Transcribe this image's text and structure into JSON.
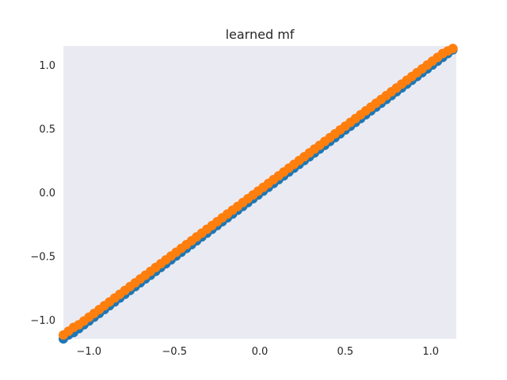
{
  "chart_data": {
    "type": "scatter",
    "title": "learned mf",
    "xlabel": "",
    "ylabel": "",
    "xlim": [
      -1.15,
      1.15
    ],
    "ylim": [
      -1.15,
      1.15
    ],
    "grid": false,
    "background": "#eaeaf2",
    "x_ticks": [
      -1.0,
      -0.5,
      0.0,
      0.5,
      1.0
    ],
    "y_ticks": [
      -1.0,
      -0.5,
      0.0,
      0.5,
      1.0
    ],
    "x_tick_labels": [
      "−1.0",
      "−0.5",
      "0.0",
      "0.5",
      "1.0"
    ],
    "y_tick_labels": [
      "−1.0",
      "−0.5",
      "0.0",
      "0.5",
      "1.0"
    ],
    "series": [
      {
        "color": "#1f77b4",
        "points": [
          [
            -1.15,
            -1.15
          ],
          [
            -1.12,
            -1.12
          ],
          [
            -1.09,
            -1.1
          ],
          [
            -1.06,
            -1.07
          ],
          [
            -1.03,
            -1.04
          ],
          [
            -1.0,
            -1.01
          ],
          [
            -0.97,
            -0.98
          ],
          [
            -0.94,
            -0.95
          ],
          [
            -0.91,
            -0.92
          ],
          [
            -0.88,
            -0.89
          ],
          [
            -0.85,
            -0.86
          ],
          [
            -0.82,
            -0.83
          ],
          [
            -0.79,
            -0.8
          ],
          [
            -0.76,
            -0.77
          ],
          [
            -0.73,
            -0.74
          ],
          [
            -0.7,
            -0.71
          ],
          [
            -0.67,
            -0.68
          ],
          [
            -0.64,
            -0.65
          ],
          [
            -0.61,
            -0.62
          ],
          [
            -0.58,
            -0.59
          ],
          [
            -0.55,
            -0.56
          ],
          [
            -0.52,
            -0.53
          ],
          [
            -0.49,
            -0.5
          ],
          [
            -0.46,
            -0.47
          ],
          [
            -0.43,
            -0.44
          ],
          [
            -0.4,
            -0.41
          ],
          [
            -0.37,
            -0.38
          ],
          [
            -0.34,
            -0.35
          ],
          [
            -0.31,
            -0.32
          ],
          [
            -0.28,
            -0.29
          ],
          [
            -0.25,
            -0.26
          ],
          [
            -0.22,
            -0.23
          ],
          [
            -0.19,
            -0.2
          ],
          [
            -0.16,
            -0.17
          ],
          [
            -0.13,
            -0.14
          ],
          [
            -0.1,
            -0.11
          ],
          [
            -0.07,
            -0.08
          ],
          [
            -0.04,
            -0.05
          ],
          [
            -0.01,
            -0.02
          ],
          [
            0.02,
            0.01
          ],
          [
            0.05,
            0.04
          ],
          [
            0.08,
            0.07
          ],
          [
            0.11,
            0.1
          ],
          [
            0.14,
            0.13
          ],
          [
            0.17,
            0.16
          ],
          [
            0.2,
            0.19
          ],
          [
            0.23,
            0.22
          ],
          [
            0.26,
            0.25
          ],
          [
            0.29,
            0.28
          ],
          [
            0.32,
            0.31
          ],
          [
            0.35,
            0.34
          ],
          [
            0.38,
            0.37
          ],
          [
            0.41,
            0.4
          ],
          [
            0.44,
            0.43
          ],
          [
            0.47,
            0.46
          ],
          [
            0.5,
            0.49
          ],
          [
            0.53,
            0.52
          ],
          [
            0.56,
            0.55
          ],
          [
            0.59,
            0.58
          ],
          [
            0.62,
            0.61
          ],
          [
            0.65,
            0.64
          ],
          [
            0.68,
            0.67
          ],
          [
            0.71,
            0.7
          ],
          [
            0.74,
            0.73
          ],
          [
            0.77,
            0.76
          ],
          [
            0.8,
            0.79
          ],
          [
            0.83,
            0.82
          ],
          [
            0.86,
            0.85
          ],
          [
            0.89,
            0.88
          ],
          [
            0.92,
            0.91
          ],
          [
            0.95,
            0.94
          ],
          [
            0.98,
            0.97
          ],
          [
            1.01,
            1.0
          ],
          [
            1.04,
            1.03
          ],
          [
            1.07,
            1.06
          ],
          [
            1.1,
            1.09
          ],
          [
            1.13,
            1.12
          ]
        ]
      },
      {
        "color": "#ff7f0e",
        "points": [
          [
            -1.15,
            -1.12
          ],
          [
            -1.12,
            -1.09
          ],
          [
            -1.09,
            -1.06
          ],
          [
            -1.06,
            -1.04
          ],
          [
            -1.03,
            -1.01
          ],
          [
            -1.0,
            -0.98
          ],
          [
            -0.97,
            -0.95
          ],
          [
            -0.94,
            -0.92
          ],
          [
            -0.91,
            -0.89
          ],
          [
            -0.88,
            -0.86
          ],
          [
            -0.85,
            -0.83
          ],
          [
            -0.82,
            -0.8
          ],
          [
            -0.79,
            -0.77
          ],
          [
            -0.76,
            -0.74
          ],
          [
            -0.73,
            -0.71
          ],
          [
            -0.7,
            -0.68
          ],
          [
            -0.67,
            -0.65
          ],
          [
            -0.64,
            -0.62
          ],
          [
            -0.61,
            -0.59
          ],
          [
            -0.58,
            -0.56
          ],
          [
            -0.55,
            -0.53
          ],
          [
            -0.52,
            -0.5
          ],
          [
            -0.49,
            -0.47
          ],
          [
            -0.46,
            -0.44
          ],
          [
            -0.43,
            -0.41
          ],
          [
            -0.4,
            -0.38
          ],
          [
            -0.37,
            -0.35
          ],
          [
            -0.34,
            -0.32
          ],
          [
            -0.31,
            -0.29
          ],
          [
            -0.28,
            -0.26
          ],
          [
            -0.25,
            -0.23
          ],
          [
            -0.22,
            -0.2
          ],
          [
            -0.19,
            -0.17
          ],
          [
            -0.16,
            -0.14
          ],
          [
            -0.13,
            -0.11
          ],
          [
            -0.1,
            -0.08
          ],
          [
            -0.07,
            -0.05
          ],
          [
            -0.04,
            -0.02
          ],
          [
            -0.01,
            0.01
          ],
          [
            0.02,
            0.04
          ],
          [
            0.05,
            0.07
          ],
          [
            0.08,
            0.1
          ],
          [
            0.11,
            0.13
          ],
          [
            0.14,
            0.16
          ],
          [
            0.17,
            0.19
          ],
          [
            0.2,
            0.22
          ],
          [
            0.23,
            0.25
          ],
          [
            0.26,
            0.28
          ],
          [
            0.29,
            0.31
          ],
          [
            0.32,
            0.34
          ],
          [
            0.35,
            0.37
          ],
          [
            0.38,
            0.4
          ],
          [
            0.41,
            0.43
          ],
          [
            0.44,
            0.46
          ],
          [
            0.47,
            0.49
          ],
          [
            0.5,
            0.52
          ],
          [
            0.53,
            0.55
          ],
          [
            0.56,
            0.58
          ],
          [
            0.59,
            0.61
          ],
          [
            0.62,
            0.64
          ],
          [
            0.65,
            0.67
          ],
          [
            0.68,
            0.7
          ],
          [
            0.71,
            0.73
          ],
          [
            0.74,
            0.76
          ],
          [
            0.77,
            0.79
          ],
          [
            0.8,
            0.82
          ],
          [
            0.83,
            0.85
          ],
          [
            0.86,
            0.88
          ],
          [
            0.89,
            0.91
          ],
          [
            0.92,
            0.94
          ],
          [
            0.95,
            0.97
          ],
          [
            0.98,
            1.0
          ],
          [
            1.01,
            1.03
          ],
          [
            1.04,
            1.06
          ],
          [
            1.07,
            1.09
          ],
          [
            1.1,
            1.11
          ],
          [
            1.13,
            1.13
          ]
        ]
      }
    ]
  }
}
